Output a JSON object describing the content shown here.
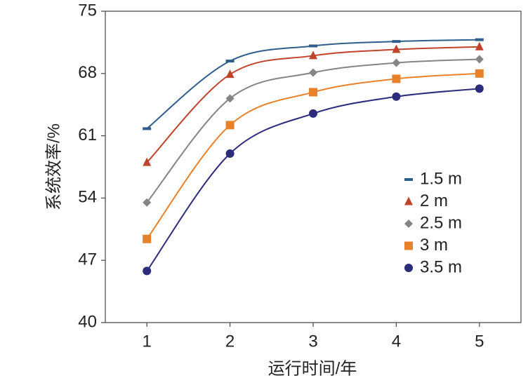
{
  "chart_data": {
    "type": "line",
    "x_label": "运行时间/年",
    "y_label": "系统效率/%",
    "x": [
      1,
      2,
      3,
      4,
      5
    ],
    "xlim": [
      0.5,
      5.5
    ],
    "xticks": [
      1,
      2,
      3,
      4,
      5
    ],
    "ylim": [
      40,
      75
    ],
    "yticks": [
      40,
      47,
      54,
      61,
      68,
      75
    ],
    "smooth": true,
    "legend": "right",
    "series": [
      {
        "name": "1.5 m",
        "color": "#2f5d8c",
        "marker": "dash",
        "values": [
          61.8,
          69.4,
          71.1,
          71.6,
          71.8
        ]
      },
      {
        "name": "2 m",
        "color": "#c0432c",
        "marker": "triangle",
        "values": [
          58.0,
          67.9,
          70.0,
          70.7,
          71.0
        ]
      },
      {
        "name": "2.5 m",
        "color": "#858585",
        "marker": "diamond",
        "values": [
          53.5,
          65.2,
          68.1,
          69.2,
          69.6
        ]
      },
      {
        "name": "3 m",
        "color": "#e8822a",
        "marker": "square",
        "values": [
          49.4,
          62.2,
          65.9,
          67.4,
          68.0
        ]
      },
      {
        "name": "3.5 m",
        "color": "#2c2b7c",
        "marker": "circle",
        "values": [
          45.8,
          59.0,
          63.5,
          65.4,
          66.3
        ]
      }
    ]
  }
}
